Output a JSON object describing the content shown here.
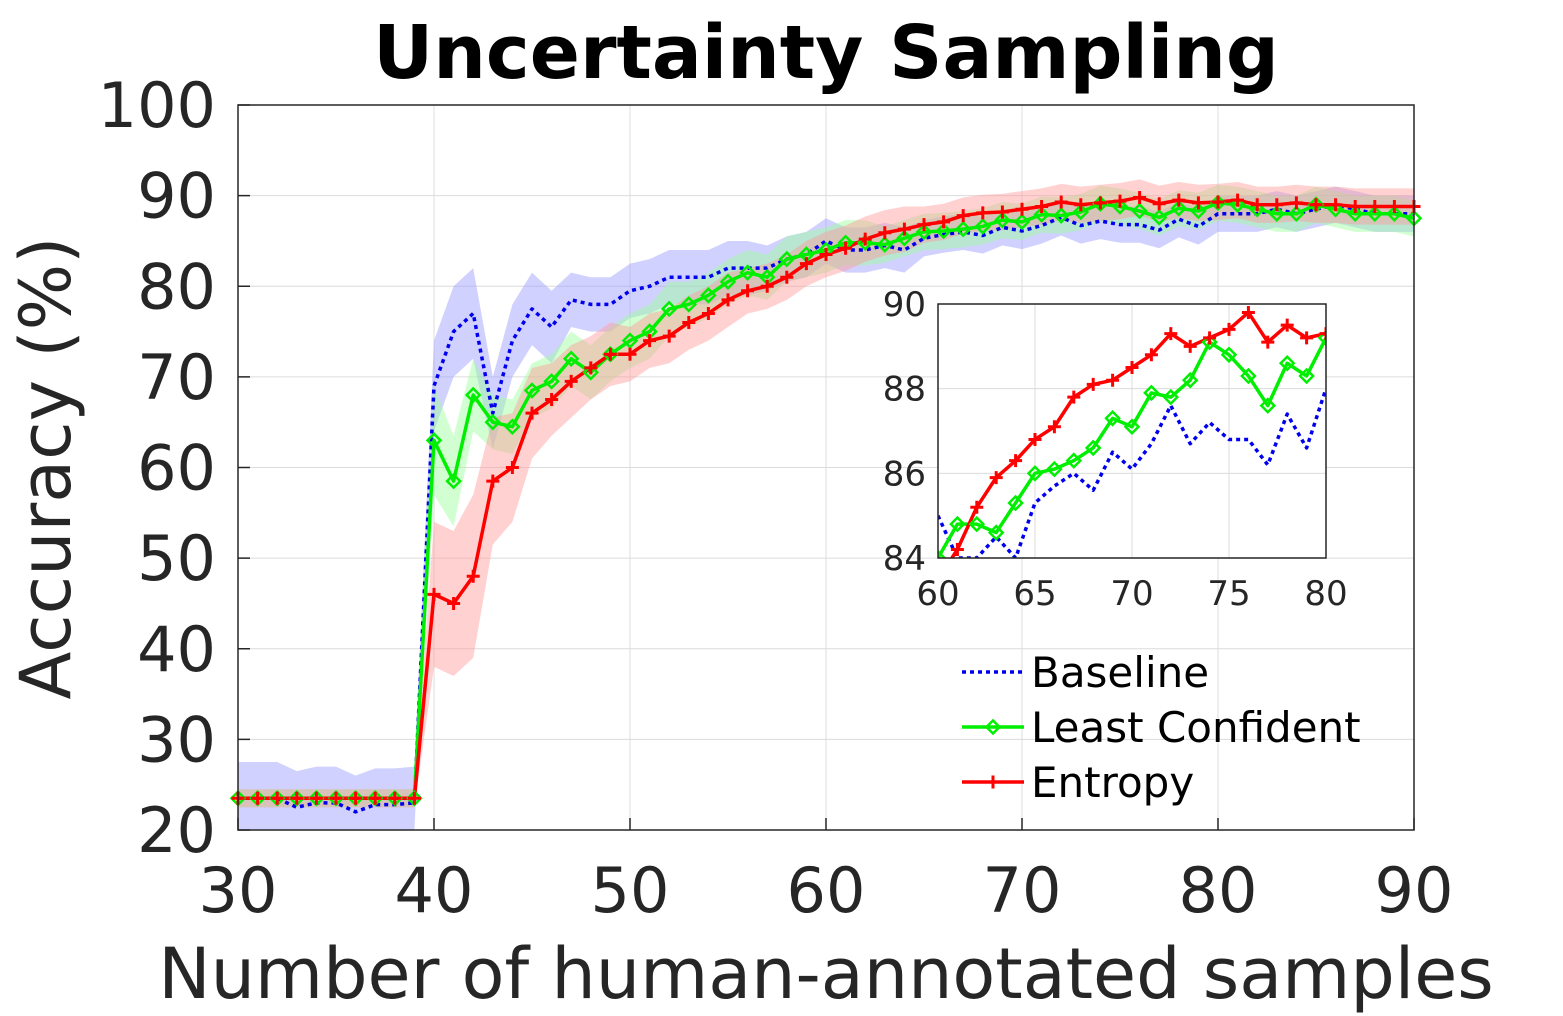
{
  "chart_data": {
    "type": "line",
    "title": "Uncertainty Sampling",
    "xlabel": "Number of human-annotated samples",
    "ylabel": "Accuracy (%)",
    "xlim": [
      30,
      90
    ],
    "ylim": [
      20,
      100
    ],
    "xticks": [
      30,
      40,
      50,
      60,
      70,
      80,
      90
    ],
    "yticks": [
      20,
      30,
      40,
      50,
      60,
      70,
      80,
      90,
      100
    ],
    "grid": true,
    "legend_position": "lower-right",
    "x": [
      30,
      31,
      32,
      33,
      34,
      35,
      36,
      37,
      38,
      39,
      40,
      41,
      42,
      43,
      44,
      45,
      46,
      47,
      48,
      49,
      50,
      51,
      52,
      53,
      54,
      55,
      56,
      57,
      58,
      59,
      60,
      61,
      62,
      63,
      64,
      65,
      66,
      67,
      68,
      69,
      70,
      71,
      72,
      73,
      74,
      75,
      76,
      77,
      78,
      79,
      80,
      81,
      82,
      83,
      84,
      85,
      86,
      87,
      88,
      89,
      90
    ],
    "series": [
      {
        "name": "Baseline",
        "color": "#0000ee",
        "style": "dotted",
        "band_color": "#9999ff",
        "values": [
          23.5,
          23.5,
          23.5,
          22.5,
          23,
          23,
          22,
          22.8,
          22.8,
          23,
          69,
          75,
          77,
          66,
          74,
          77.5,
          75.5,
          78.5,
          78,
          78,
          79.5,
          80,
          81,
          81,
          81,
          82,
          82,
          82,
          83,
          83.5,
          85,
          84,
          84,
          84.5,
          84,
          85.3,
          85.7,
          86,
          85.6,
          86.5,
          86.1,
          86.7,
          87.6,
          86.7,
          87.2,
          86.8,
          86.8,
          86.2,
          87.4,
          86.6,
          88,
          88,
          88,
          88.5,
          88,
          88.5,
          89,
          88.5,
          88,
          88,
          88
        ],
        "band": [
          4,
          4,
          4,
          4,
          4,
          4,
          4,
          4,
          4,
          4,
          5,
          5,
          5,
          4,
          4,
          4,
          4,
          3,
          3,
          3,
          3,
          3,
          3,
          3,
          3,
          3,
          3,
          2.5,
          2.5,
          2.5,
          2.5,
          2.5,
          2.5,
          2.5,
          2.5,
          2,
          2,
          2,
          2,
          2,
          2,
          2,
          2,
          2,
          2,
          2,
          2,
          2,
          2,
          2,
          2,
          2,
          2,
          2,
          2,
          2,
          2,
          2,
          2,
          2,
          2
        ]
      },
      {
        "name": "Least Confident",
        "color": "#00ee00",
        "style": "solid",
        "marker": "diamond",
        "band_color": "#99ff99",
        "values": [
          23.5,
          23.5,
          23.5,
          23.5,
          23.5,
          23.5,
          23.5,
          23.5,
          23.5,
          23.5,
          63,
          58.5,
          68,
          65,
          64.5,
          68.5,
          69.5,
          72,
          70.5,
          72.5,
          74,
          75,
          77.5,
          78,
          79,
          80.5,
          81.5,
          81,
          83,
          83.5,
          84,
          84.8,
          84.8,
          84.6,
          85.3,
          86,
          86.1,
          86.3,
          86.6,
          87.3,
          87.1,
          87.9,
          87.8,
          88.2,
          89.1,
          88.8,
          88.3,
          87.6,
          88.6,
          88.3,
          89.2,
          89,
          88.5,
          88,
          88,
          89,
          88.5,
          88,
          88,
          88,
          87.5
        ],
        "band": [
          1,
          1,
          1,
          1,
          1,
          1,
          1,
          1,
          1,
          1,
          6,
          5,
          4,
          3,
          3,
          3,
          3,
          3,
          3,
          3,
          3,
          3,
          3,
          2.5,
          2.5,
          2.5,
          2.5,
          2.5,
          2.5,
          2.5,
          2.5,
          2.5,
          2.5,
          2,
          2,
          2,
          2,
          2,
          2,
          2,
          2,
          2,
          2,
          2,
          2,
          2,
          2,
          2,
          2,
          2,
          2,
          2,
          2,
          2,
          2,
          2,
          2,
          2,
          2,
          2,
          2
        ]
      },
      {
        "name": "Entropy",
        "color": "#ff0000",
        "style": "solid",
        "marker": "plus",
        "band_color": "#ff9999",
        "values": [
          23.5,
          23.5,
          23.5,
          23.5,
          23.5,
          23.5,
          23.5,
          23.5,
          23.5,
          23.5,
          46,
          45,
          48,
          58.5,
          60,
          66,
          67.5,
          69.5,
          71,
          72.5,
          72.5,
          74,
          74.5,
          76,
          77,
          78.5,
          79.5,
          80,
          81,
          82.5,
          83.5,
          84.2,
          85.2,
          85.9,
          86.3,
          86.8,
          87.1,
          87.8,
          88.1,
          88.2,
          88.5,
          88.8,
          89.3,
          89,
          89.2,
          89.4,
          89.8,
          89.1,
          89.5,
          89.2,
          89.3,
          89.5,
          89,
          89,
          89.2,
          89,
          89,
          88.8,
          88.8,
          88.8,
          88.8
        ],
        "band": [
          1,
          1,
          1,
          1,
          1,
          1,
          1,
          1,
          1,
          1,
          8,
          8,
          9,
          7,
          6,
          5,
          4,
          4,
          3.5,
          3.5,
          3,
          3,
          3,
          3,
          3,
          3,
          2.5,
          2.5,
          2.5,
          2.5,
          2.5,
          2.5,
          2.5,
          2.5,
          2.5,
          2,
          2,
          2,
          2,
          2,
          2,
          2,
          2,
          2,
          2,
          2,
          2,
          2,
          2,
          2,
          2,
          2,
          2,
          2,
          2,
          2,
          2,
          2,
          2,
          2,
          2
        ]
      }
    ],
    "inset": {
      "xlim": [
        60,
        80
      ],
      "ylim": [
        84,
        90
      ],
      "xticks": [
        60,
        65,
        70,
        75,
        80
      ],
      "yticks": [
        84,
        86,
        88,
        90
      ]
    }
  }
}
